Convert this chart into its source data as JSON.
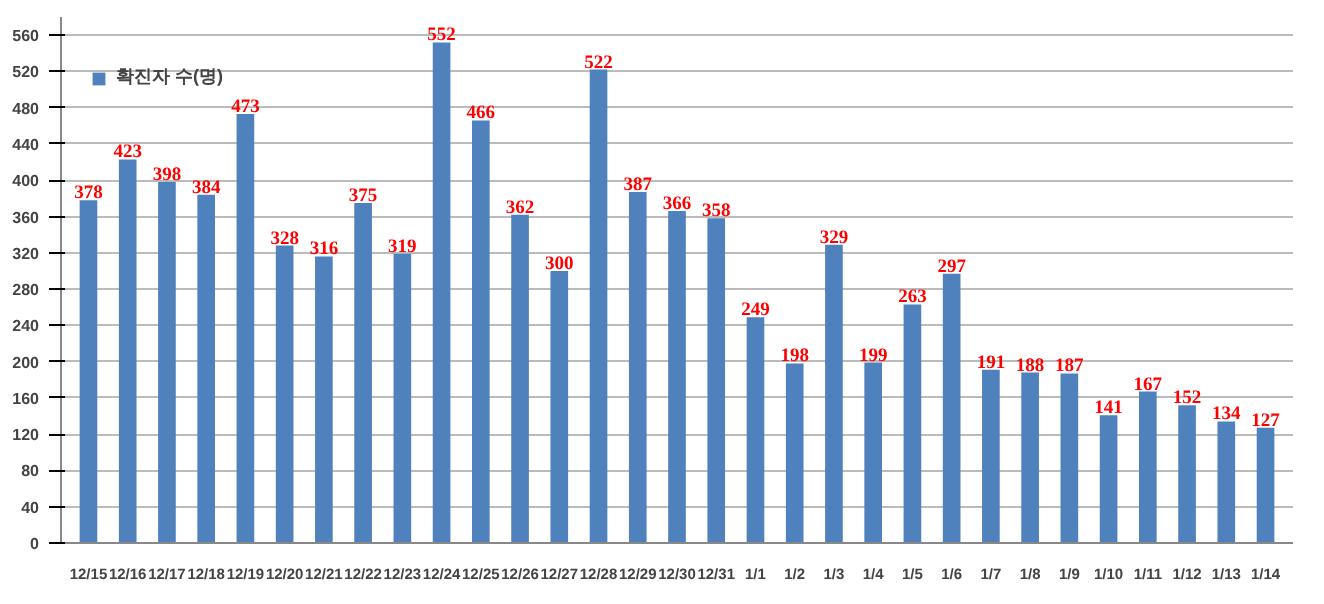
{
  "chart_data": {
    "type": "bar",
    "categories": [
      "12/15",
      "12/16",
      "12/17",
      "12/18",
      "12/19",
      "12/20",
      "12/21",
      "12/22",
      "12/23",
      "12/24",
      "12/25",
      "12/26",
      "12/27",
      "12/28",
      "12/29",
      "12/30",
      "12/31",
      "1/1",
      "1/2",
      "1/3",
      "1/4",
      "1/5",
      "1/6",
      "1/7",
      "1/8",
      "1/9",
      "1/10",
      "1/11",
      "1/12",
      "1/13",
      "1/14"
    ],
    "series": [
      {
        "name": "확진자 수(명)",
        "color": "#4f81bd",
        "values": [
          378,
          423,
          398,
          384,
          473,
          328,
          316,
          375,
          319,
          552,
          466,
          362,
          300,
          522,
          387,
          366,
          358,
          249,
          198,
          329,
          199,
          263,
          297,
          191,
          188,
          187,
          141,
          167,
          152,
          134,
          127
        ]
      }
    ],
    "ylim": [
      0,
      580
    ],
    "yticks": [
      0,
      40,
      80,
      120,
      160,
      200,
      240,
      280,
      320,
      360,
      400,
      440,
      480,
      520,
      560
    ],
    "grid": "y",
    "legend": "top left",
    "data_labels": true
  }
}
